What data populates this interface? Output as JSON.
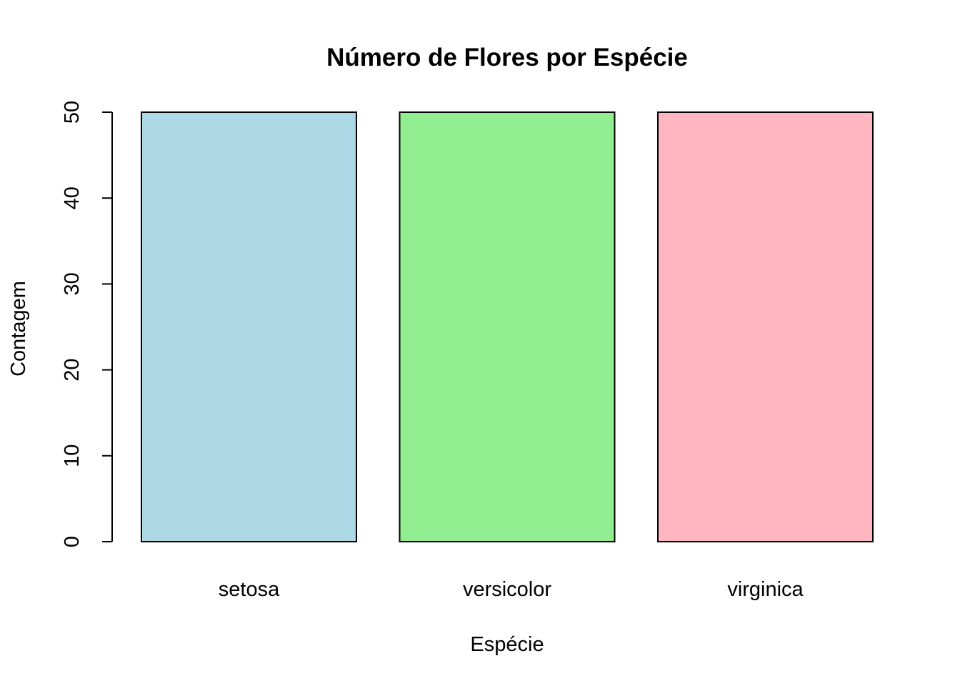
{
  "chart_data": {
    "type": "bar",
    "title": "Número de Flores por Espécie",
    "xlabel": "Espécie",
    "ylabel": "Contagem",
    "categories": [
      "setosa",
      "versicolor",
      "virginica"
    ],
    "values": [
      50,
      50,
      50
    ],
    "colors": [
      "#ADD8E6",
      "#90EE90",
      "#FFB6C1"
    ],
    "ylim": [
      0,
      50
    ],
    "yticks": [
      0,
      10,
      20,
      30,
      40,
      50
    ],
    "grid": false,
    "legend": "none"
  }
}
